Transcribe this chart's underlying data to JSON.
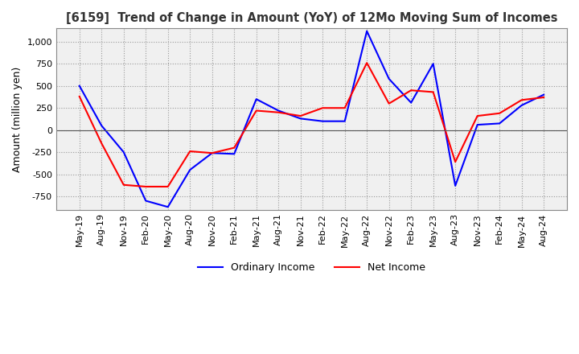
{
  "title": "[6159]  Trend of Change in Amount (YoY) of 12Mo Moving Sum of Incomes",
  "ylabel": "Amount (million yen)",
  "ylim": [
    -900,
    1150
  ],
  "yticks": [
    -750,
    -500,
    -250,
    0,
    250,
    500,
    750,
    1000
  ],
  "ordinary_income_color": "#0000FF",
  "net_income_color": "#FF0000",
  "background_color": "#FFFFFF",
  "grid_color": "#999999",
  "x_labels": [
    "May-19",
    "Aug-19",
    "Nov-19",
    "Feb-20",
    "May-20",
    "Aug-20",
    "Nov-20",
    "Feb-21",
    "May-21",
    "Aug-21",
    "Nov-21",
    "Feb-22",
    "May-22",
    "Aug-22",
    "Nov-22",
    "Feb-23",
    "May-23",
    "Aug-23",
    "Nov-23",
    "Feb-24",
    "May-24",
    "Aug-24"
  ],
  "ordinary_income": [
    500,
    50,
    -250,
    -800,
    -870,
    -450,
    -260,
    -270,
    350,
    220,
    130,
    100,
    100,
    1120,
    580,
    310,
    750,
    -630,
    60,
    75,
    280,
    400
  ],
  "net_income": [
    380,
    -150,
    -620,
    -640,
    -640,
    -240,
    -260,
    -200,
    220,
    200,
    160,
    250,
    250,
    760,
    300,
    450,
    430,
    -360,
    160,
    190,
    340,
    370
  ],
  "legend_labels": [
    "Ordinary Income",
    "Net Income"
  ]
}
